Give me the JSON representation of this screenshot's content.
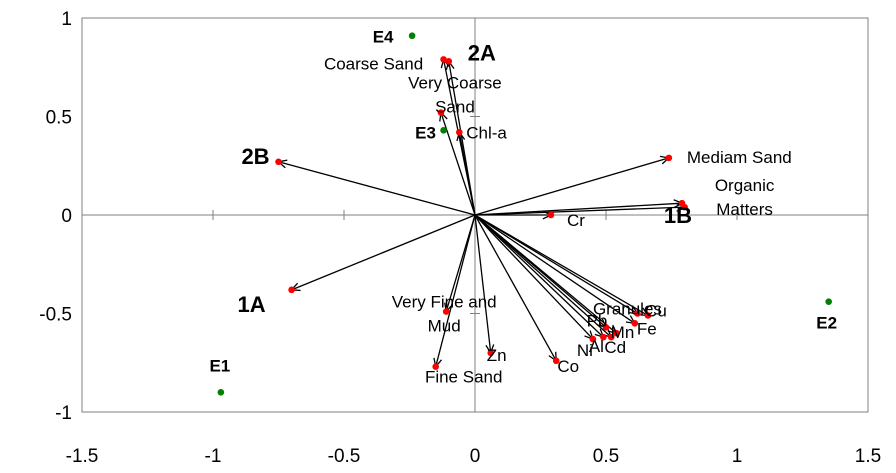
{
  "chart_data": {
    "type": "biplot",
    "xlim": [
      -1.5,
      1.5
    ],
    "ylim": [
      -1,
      1
    ],
    "xticks": [
      "-1.5",
      "-1",
      "-0.5",
      "0",
      "0.5",
      "1",
      "1.5"
    ],
    "yticks": [
      "1",
      "0.5",
      "0",
      "-0.5",
      "-1"
    ],
    "xtick_values": [
      -1.5,
      -1,
      -0.5,
      0,
      0.5,
      1,
      1.5
    ],
    "ytick_values": [
      1,
      0.5,
      0,
      -0.5,
      -1
    ],
    "grid": false,
    "zero_lines": true,
    "vectors": [
      {
        "label": "Coarse Sand",
        "x": -0.12,
        "y": 0.79
      },
      {
        "label": "Very Coarse Sand",
        "x": -0.13,
        "y": 0.52
      },
      {
        "label": "Chl-a",
        "x": -0.06,
        "y": 0.42
      },
      {
        "label": "Mediam Sand",
        "x": 0.74,
        "y": 0.29
      },
      {
        "label": "Organic Matters",
        "x": 0.8,
        "y": 0.04
      },
      {
        "label": "Cr",
        "x": 0.29,
        "y": 0.0
      },
      {
        "label": "Very Fine and Mud",
        "x": -0.11,
        "y": -0.49
      },
      {
        "label": "Fine Sand",
        "x": -0.15,
        "y": -0.77
      },
      {
        "label": "Zn",
        "x": 0.06,
        "y": -0.7
      },
      {
        "label": "Co",
        "x": 0.31,
        "y": -0.74
      },
      {
        "label": "Granules",
        "x": 0.62,
        "y": -0.5
      },
      {
        "label": "Cu",
        "x": 0.66,
        "y": -0.51
      },
      {
        "label": "Fe",
        "x": 0.61,
        "y": -0.55
      },
      {
        "label": "Mn",
        "x": 0.54,
        "y": -0.6
      },
      {
        "label": "Cd",
        "x": 0.52,
        "y": -0.62
      },
      {
        "label": "Al",
        "x": 0.49,
        "y": -0.62
      },
      {
        "label": "Ni",
        "x": 0.45,
        "y": -0.63
      },
      {
        "label": "Pb",
        "x": 0.5,
        "y": -0.57
      }
    ],
    "stations": [
      {
        "label": "1A",
        "x": -0.7,
        "y": -0.38
      },
      {
        "label": "2A",
        "x": -0.1,
        "y": 0.78
      },
      {
        "label": "2B",
        "x": -0.75,
        "y": 0.27
      },
      {
        "label": "1B",
        "x": 0.79,
        "y": 0.06
      }
    ],
    "sites": [
      {
        "label": "E1",
        "x": -0.97,
        "y": -0.9
      },
      {
        "label": "E2",
        "x": 1.35,
        "y": -0.44
      },
      {
        "label": "E3",
        "x": -0.12,
        "y": 0.43
      },
      {
        "label": "E4",
        "x": -0.24,
        "y": 0.91
      }
    ],
    "colors": {
      "vector_point": "#ff0000",
      "site_point": "#008000",
      "arrow": "#000000",
      "axis": "#808080"
    }
  }
}
